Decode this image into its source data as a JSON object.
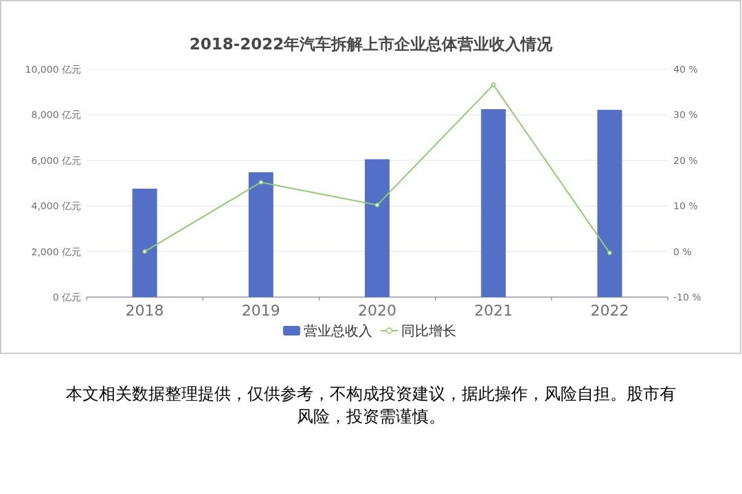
{
  "chart_data": {
    "type": "bar",
    "title": "2018-2022年汽车拆解上市企业总体营业收入情况",
    "categories": [
      "2018",
      "2019",
      "2020",
      "2021",
      "2022"
    ],
    "series": [
      {
        "name": "营业总收入",
        "color": "#5470c6",
        "values": [
          4760,
          5480,
          6050,
          8250,
          8220
        ]
      },
      {
        "name": "同比增长",
        "type": "line",
        "axis": "y2",
        "color": "#91cc75",
        "marker": "circle",
        "values": [
          0.0,
          15.2,
          10.2,
          36.6,
          -0.3
        ]
      }
    ],
    "ylim": [
      0,
      10000
    ],
    "yticks": [
      {
        "value": 0,
        "label": "0 亿元"
      },
      {
        "value": 2000,
        "label": "2,000 亿元"
      },
      {
        "value": 4000,
        "label": "4,000 亿元"
      },
      {
        "value": 6000,
        "label": "6,000 亿元"
      },
      {
        "value": 8000,
        "label": "8,000 亿元"
      },
      {
        "value": 10000,
        "label": "10,000 亿元"
      }
    ],
    "y2lim": [
      -10,
      40
    ],
    "y2ticks": [
      {
        "value": -10,
        "label": "-10 %"
      },
      {
        "value": 0,
        "label": "0 %"
      },
      {
        "value": 10,
        "label": "10 %"
      },
      {
        "value": 20,
        "label": "20 %"
      },
      {
        "value": 30,
        "label": "30 %"
      },
      {
        "value": 40,
        "label": "40 %"
      }
    ],
    "grid": "y",
    "legend": "bottom",
    "annotations": [
      "本文相关数据整理提供，仅供参考，不构成投资建议，据此操作，风险自担。股市有风险，投资需谨慎。"
    ]
  }
}
